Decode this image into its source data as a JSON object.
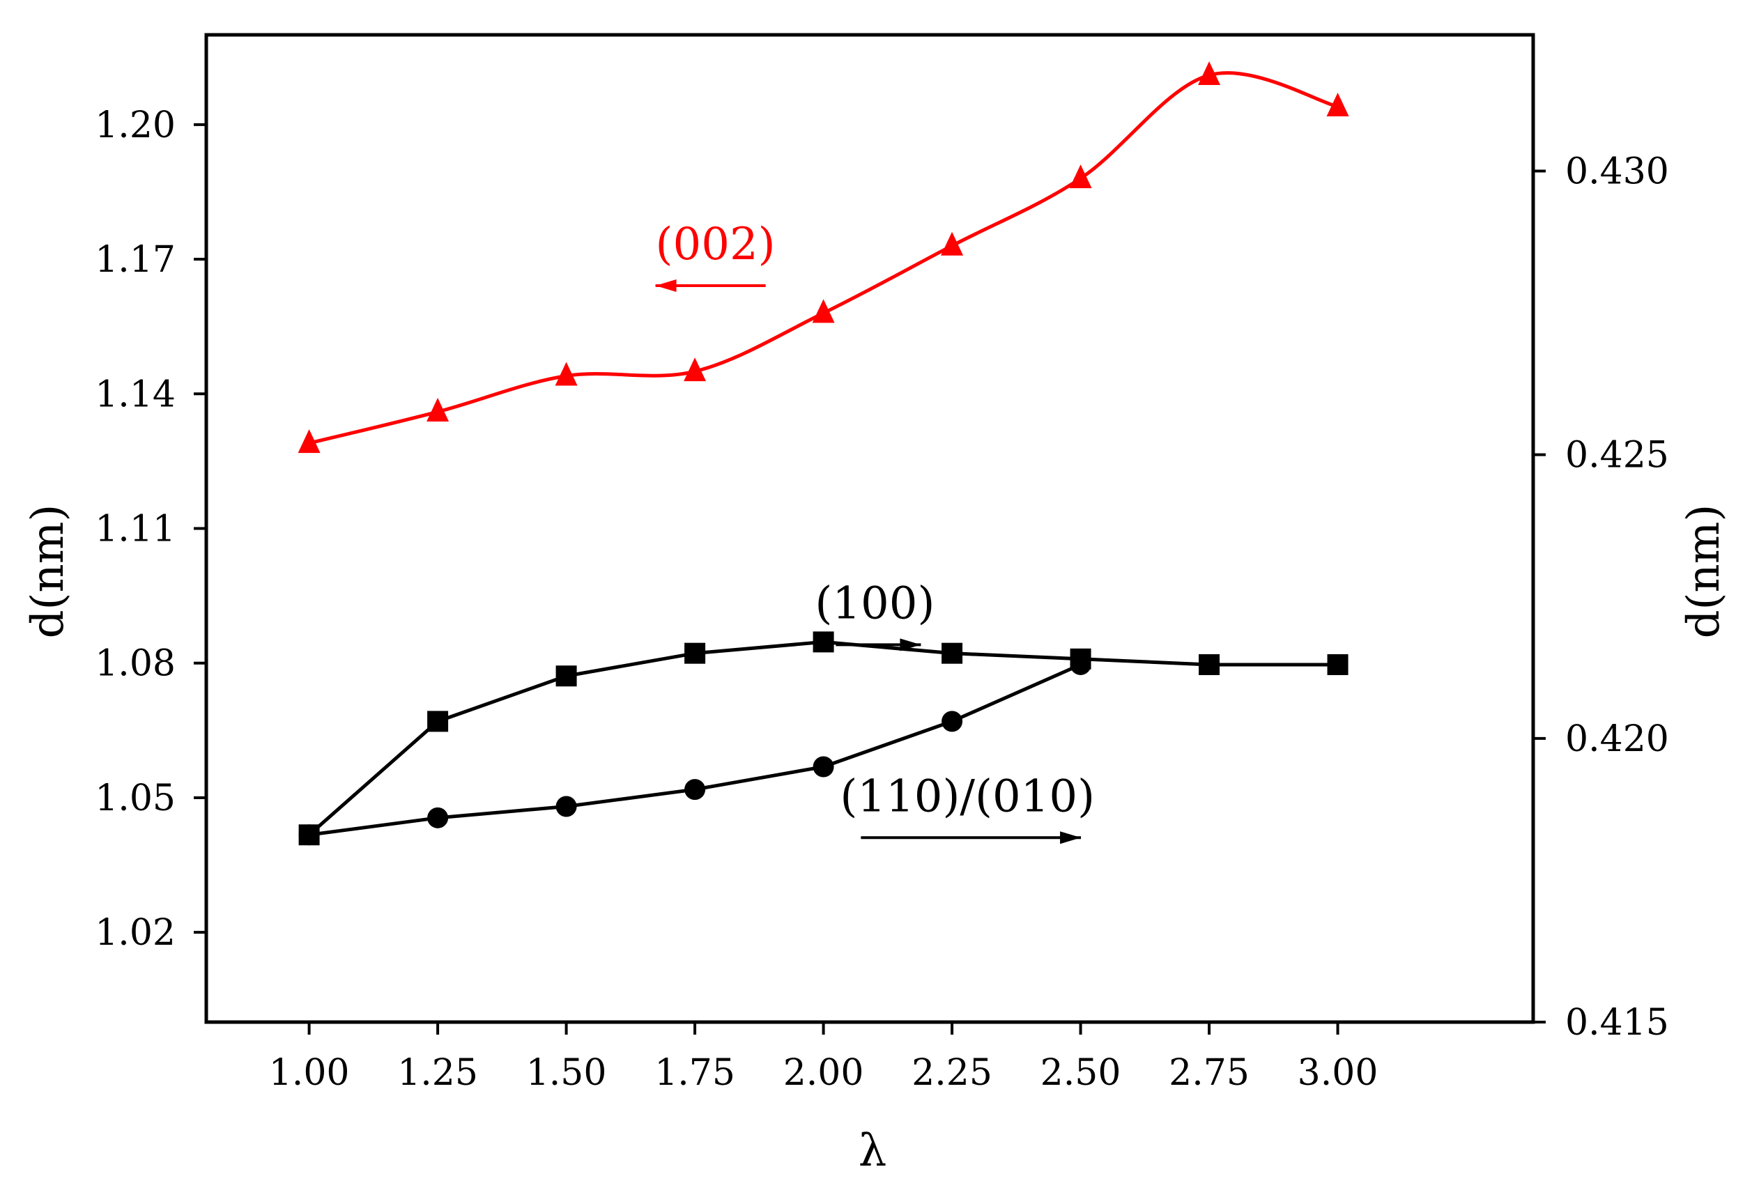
{
  "chart_data": {
    "type": "line",
    "title": "",
    "xlabel": "λ",
    "ylabel_left": "d(nm)",
    "ylabel_right": "d(nm)",
    "xlim": [
      0.8,
      3.38
    ],
    "ylim_left": [
      1.0,
      1.22
    ],
    "ylim_right": [
      0.415,
      0.4324
    ],
    "x_ticks": [
      1.0,
      1.25,
      1.5,
      1.75,
      2.0,
      2.25,
      2.5,
      2.75,
      3.0
    ],
    "x_tick_labels": [
      "1.00",
      "1.25",
      "1.50",
      "1.75",
      "2.00",
      "2.25",
      "2.50",
      "2.75",
      "3.00"
    ],
    "y_left_ticks": [
      1.02,
      1.05,
      1.08,
      1.11,
      1.14,
      1.17,
      1.2
    ],
    "y_left_tick_labels": [
      "1.02",
      "1.05",
      "1.08",
      "1.11",
      "1.14",
      "1.17",
      "1.20"
    ],
    "y_right_ticks": [
      0.415,
      0.42,
      0.425,
      0.43
    ],
    "y_right_tick_labels": [
      "0.415",
      "0.420",
      "0.425",
      "0.430"
    ],
    "grid": false,
    "series": [
      {
        "name": "(002)",
        "axis": "left",
        "color": "#ff0000",
        "marker": "triangle",
        "smooth": true,
        "x": [
          1.0,
          1.25,
          1.5,
          1.75,
          2.0,
          2.25,
          2.5,
          2.75,
          3.0
        ],
        "values": [
          1.129,
          1.136,
          1.144,
          1.145,
          1.158,
          1.173,
          1.188,
          1.211,
          1.204
        ]
      },
      {
        "name": "(100)",
        "axis": "right",
        "color": "#000000",
        "marker": "square",
        "smooth": false,
        "x": [
          1.0,
          1.25,
          1.5,
          1.75,
          2.0,
          2.25,
          2.5,
          2.75,
          3.0
        ],
        "values": [
          0.4183,
          0.4203,
          0.4211,
          0.4215,
          0.4217,
          0.4215,
          0.4214,
          0.4213,
          0.4213
        ]
      },
      {
        "name": "(110)/(010)",
        "axis": "right",
        "color": "#000000",
        "marker": "circle",
        "smooth": false,
        "x": [
          1.0,
          1.25,
          1.5,
          1.75,
          2.0,
          2.25,
          2.5
        ],
        "values": [
          0.4183,
          0.4186,
          0.4188,
          0.4191,
          0.4195,
          0.4203,
          0.4213
        ]
      }
    ],
    "annotations": [
      {
        "text": "(002)",
        "color": "#ff0000",
        "arrow": "left",
        "x": 1.79,
        "y_left": 1.17
      },
      {
        "text": "(100)",
        "color": "#000000",
        "arrow": "right",
        "x": 2.1,
        "y_left": 1.09
      },
      {
        "text": "(110)/(010)",
        "color": "#000000",
        "arrow": "right",
        "x": 2.28,
        "y_left": 1.047
      }
    ]
  }
}
